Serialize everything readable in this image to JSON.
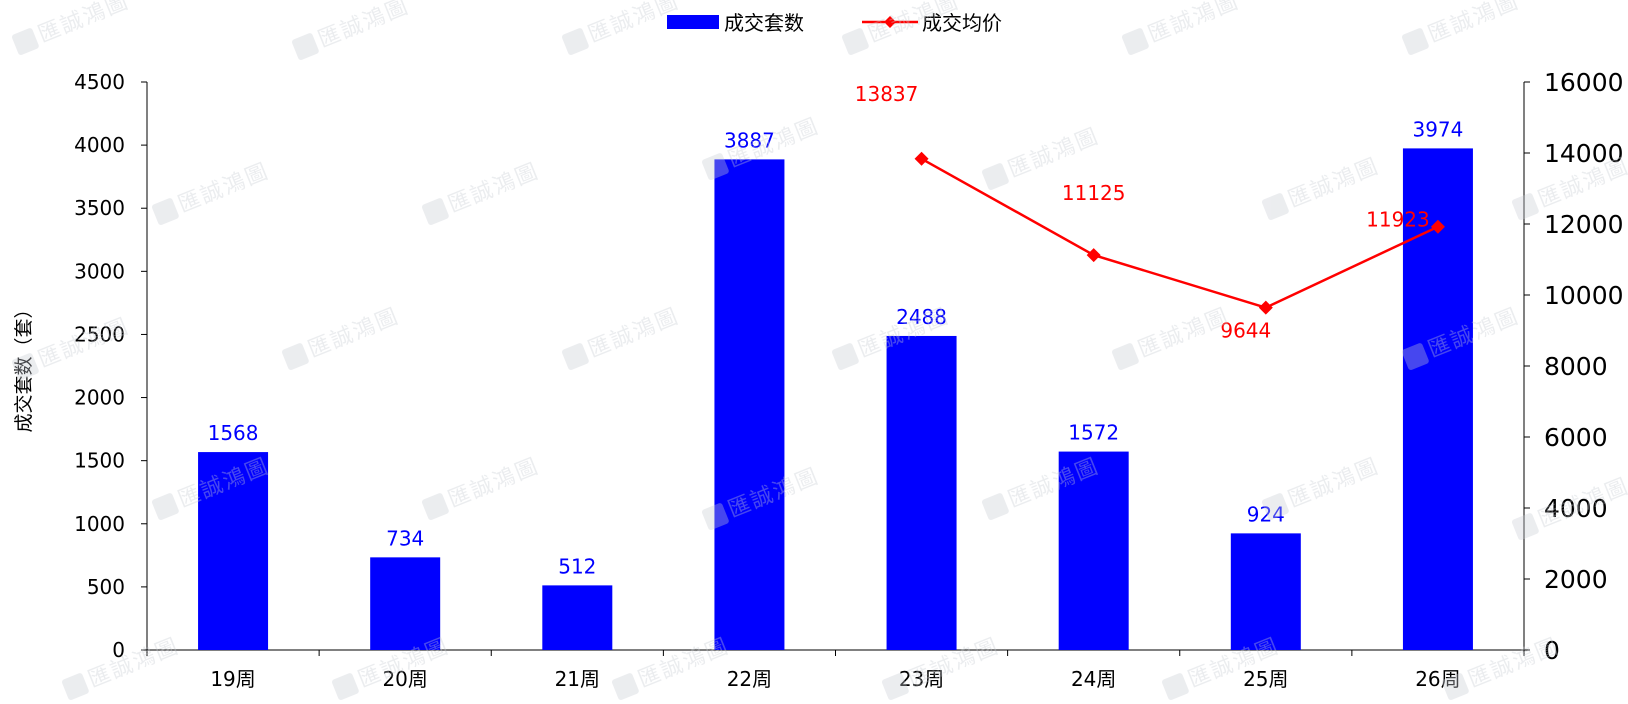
{
  "watermark": {
    "text": "匯誠鴻圖"
  },
  "chart_data": {
    "type": "bar",
    "categories": [
      "19周",
      "20周",
      "21周",
      "22周",
      "23周",
      "24周",
      "25周",
      "26周"
    ],
    "series": [
      {
        "name": "成交套数",
        "type": "bar",
        "axis": "left",
        "color": "#0000ff",
        "values": [
          1568,
          734,
          512,
          3887,
          2488,
          1572,
          924,
          3974
        ]
      },
      {
        "name": "成交均价",
        "type": "line",
        "axis": "right",
        "color": "#ff0000",
        "values": [
          null,
          null,
          null,
          null,
          13837,
          11125,
          9644,
          11923
        ]
      }
    ],
    "ylabel": "成交套数（套）",
    "ylim": [
      0,
      4500
    ],
    "yticks": [
      0,
      500,
      1000,
      1500,
      2000,
      2500,
      3000,
      3500,
      4000,
      4500
    ],
    "y2lim": [
      0,
      16000
    ],
    "y2ticks": [
      0,
      2000,
      4000,
      6000,
      8000,
      10000,
      12000,
      14000,
      16000
    ],
    "legend_position": "top-center",
    "grid": false
  }
}
